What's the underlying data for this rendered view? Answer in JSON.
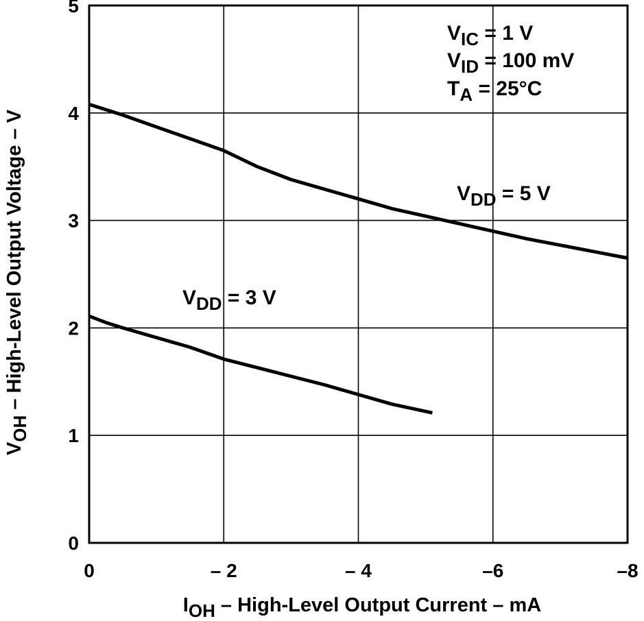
{
  "chart_data": {
    "type": "line",
    "title": "",
    "xlabel": {
      "main": "I",
      "sub": "OH",
      "rest": " – High-Level Output Current – mA"
    },
    "ylabel": {
      "main": "V",
      "sub": "OH",
      "rest": " – High-Level Output Voltage – V"
    },
    "xlim": [
      0,
      -8
    ],
    "ylim": [
      0,
      5
    ],
    "grid": true,
    "x_ticks": [
      {
        "value": 0,
        "label": "0"
      },
      {
        "value": -2,
        "label": "– 2"
      },
      {
        "value": -4,
        "label": "– 4"
      },
      {
        "value": -6,
        "label": "–6"
      },
      {
        "value": -8,
        "label": "–8"
      }
    ],
    "y_ticks": [
      {
        "value": 0,
        "label": "0"
      },
      {
        "value": 1,
        "label": "1"
      },
      {
        "value": 2,
        "label": "2"
      },
      {
        "value": 3,
        "label": "3"
      },
      {
        "value": 4,
        "label": "4"
      },
      {
        "value": 5,
        "label": "5"
      }
    ],
    "conditions": [
      {
        "main": "V",
        "sub": "IC",
        "rest": " = 1 V"
      },
      {
        "main": "V",
        "sub": "ID",
        "rest": " = 100 mV"
      },
      {
        "main": "T",
        "sub": "A",
        "rest": " = 25°C"
      }
    ],
    "series": [
      {
        "name": "VDD = 5 V",
        "label": {
          "main": "V",
          "sub": "DD",
          "rest": " = 5 V"
        },
        "points": [
          [
            0,
            4.08
          ],
          [
            -0.5,
            3.98
          ],
          [
            -1,
            3.87
          ],
          [
            -1.5,
            3.76
          ],
          [
            -2,
            3.65
          ],
          [
            -2.5,
            3.5
          ],
          [
            -3,
            3.38
          ],
          [
            -3.5,
            3.29
          ],
          [
            -4,
            3.2
          ],
          [
            -4.5,
            3.11
          ],
          [
            -5,
            3.04
          ],
          [
            -5.5,
            2.97
          ],
          [
            -6,
            2.9
          ],
          [
            -6.5,
            2.83
          ],
          [
            -7,
            2.77
          ],
          [
            -7.5,
            2.71
          ],
          [
            -8,
            2.65
          ]
        ]
      },
      {
        "name": "VDD = 3 V",
        "label": {
          "main": "V",
          "sub": "DD",
          "rest": " = 3 V"
        },
        "points": [
          [
            0,
            2.11
          ],
          [
            -0.25,
            2.05
          ],
          [
            -0.5,
            2.0
          ],
          [
            -1,
            1.91
          ],
          [
            -1.5,
            1.82
          ],
          [
            -2,
            1.71
          ],
          [
            -2.5,
            1.63
          ],
          [
            -3,
            1.55
          ],
          [
            -3.5,
            1.47
          ],
          [
            -4,
            1.38
          ],
          [
            -4.5,
            1.29
          ],
          [
            -5.1,
            1.21
          ]
        ]
      }
    ]
  }
}
